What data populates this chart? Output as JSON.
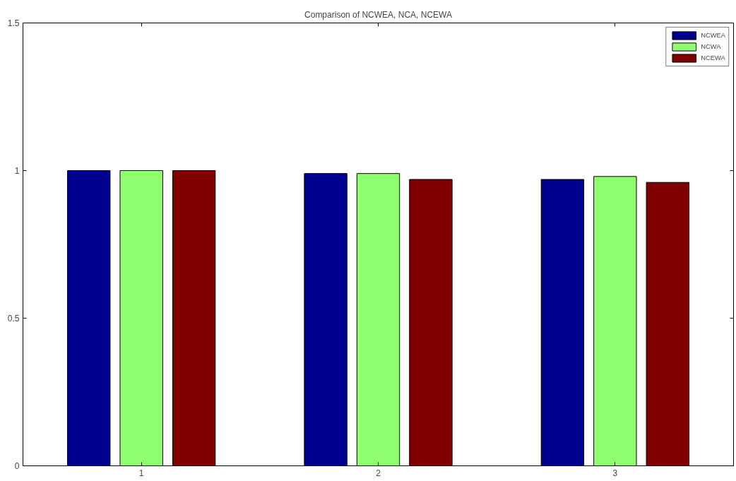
{
  "chart_data": {
    "type": "bar",
    "title": "Comparison of NCWEA, NCA, NCEWA",
    "categories": [
      "1",
      "2",
      "3"
    ],
    "series": [
      {
        "name": "NCWEA",
        "color": "#00008f",
        "values": [
          1.0,
          0.99,
          0.97
        ]
      },
      {
        "name": "NCWA",
        "color": "#8fff70",
        "values": [
          1.0,
          0.99,
          0.98
        ]
      },
      {
        "name": "NCEWA",
        "color": "#800000",
        "values": [
          1.0,
          0.97,
          0.96
        ]
      }
    ],
    "ylim": [
      0,
      1.5
    ],
    "yticks": [
      0,
      0.5,
      1,
      1.5
    ],
    "grid": false,
    "legend": "top right"
  }
}
